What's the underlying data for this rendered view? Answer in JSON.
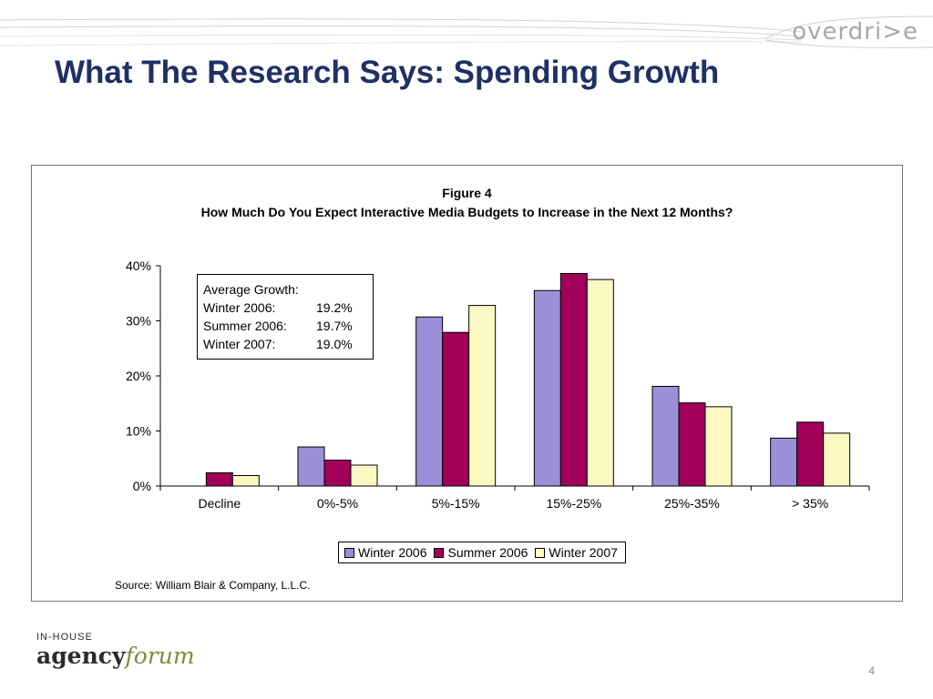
{
  "slide": {
    "brand": "overdri>e",
    "title": "What The Research Says: Spending Growth",
    "page_number": "4"
  },
  "logo": {
    "top": "IN-HOUSE",
    "word1": "agency",
    "word2": "forum"
  },
  "colors": {
    "title": "#1f3064",
    "series": [
      "#9b8fd7",
      "#a0005a",
      "#fbf9c1"
    ]
  },
  "avg_box": {
    "heading": "Average Growth:",
    "rows": [
      {
        "label": "Winter 2006:",
        "value": "19.2%"
      },
      {
        "label": "Summer 2006:",
        "value": "19.7%"
      },
      {
        "label": "Winter 2007:",
        "value": "19.0%"
      }
    ]
  },
  "chart_data": {
    "type": "bar",
    "title": "Figure 4",
    "subtitle": "How Much Do You Expect Interactive Media Budgets to Increase in the Next 12 Months?",
    "categories": [
      "Decline",
      "0%-5%",
      "5%-15%",
      "15%-25%",
      "25%-35%",
      "> 35%"
    ],
    "series": [
      {
        "name": "Winter 2006",
        "values": [
          0,
          7.1,
          30.7,
          35.5,
          18.1,
          8.7
        ]
      },
      {
        "name": "Summer 2006",
        "values": [
          2.4,
          4.7,
          27.9,
          38.6,
          15.1,
          11.6
        ]
      },
      {
        "name": "Winter 2007",
        "values": [
          1.9,
          3.8,
          32.8,
          37.5,
          14.4,
          9.6
        ]
      }
    ],
    "yticks": [
      "0%",
      "10%",
      "20%",
      "30%",
      "40%"
    ],
    "ylim": [
      0,
      40
    ],
    "grid": false,
    "legend_position": "bottom",
    "source": "Source: William Blair & Company, L.L.C."
  }
}
